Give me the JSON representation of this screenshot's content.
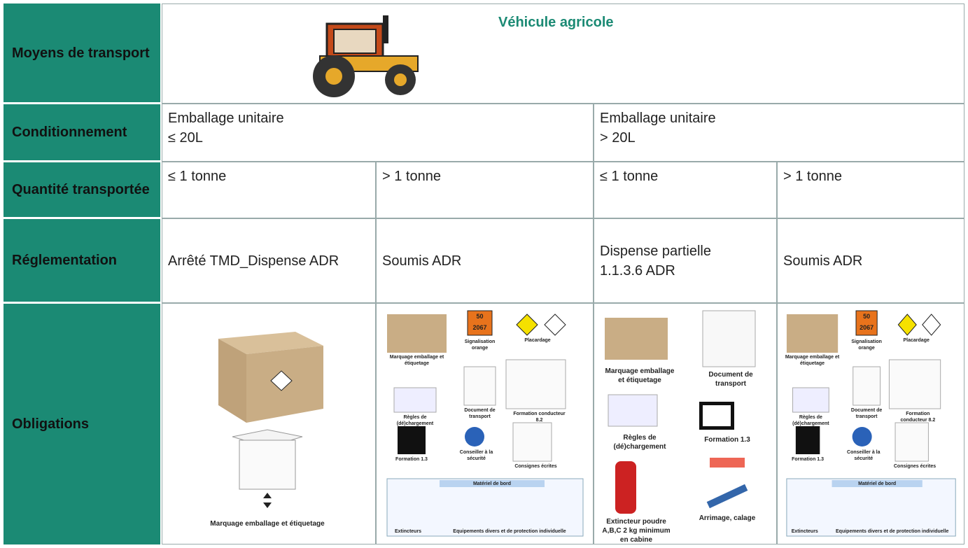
{
  "header_column": [
    "Moyens de transport",
    "Conditionnement",
    "Quantité transportée",
    "Réglementation",
    "Obligations"
  ],
  "transport": {
    "title": "Véhicule agricole"
  },
  "conditionnement": [
    [
      "Emballage unitaire",
      "≤ 20L"
    ],
    [
      "Emballage unitaire",
      "> 20L"
    ]
  ],
  "quantite": [
    "≤ 1 tonne",
    "> 1 tonne",
    "≤ 1 tonne",
    "> 1 tonne"
  ],
  "reglementation": [
    [
      "Arrêté TMD_Dispense ADR"
    ],
    [
      "Soumis ADR"
    ],
    [
      "Dispense partielle",
      "1.1.3.6 ADR"
    ],
    [
      "Soumis ADR"
    ]
  ],
  "obligations": [
    {
      "captions": [
        "Marquage emballage et étiquetage"
      ]
    },
    {
      "plate": [
        "50",
        "2067"
      ],
      "captions": [
        "Marquage emballage et étiquetage",
        "Signalisation orange",
        "Placardage",
        "Règles de (dé)chargement",
        "Document de transport",
        "Formation conducteur 8.2",
        "Formation 1.3",
        "Conseiller à la sécurité",
        "Consignes écrites",
        "Matériel de bord",
        "Extincteurs",
        "Equipements divers et de protection individuelle"
      ]
    },
    {
      "captions": [
        "Marquage emballage et étiquetage",
        "Document de transport",
        "Règles de (dé)chargement",
        "Formation 1.3",
        "Extincteur poudre A,B,C 2 kg minimum en cabine",
        "Arrimage, calage"
      ]
    },
    {
      "plate": [
        "50",
        "2067"
      ],
      "captions": [
        "Marquage emballage et étiquetage",
        "Signalisation orange",
        "Placardage",
        "Règles de (dé)chargement",
        "Document de transport",
        "Formation conducteur 8.2",
        "Formation 1.3",
        "Conseiller à la sécurité",
        "Consignes écrites",
        "Matériel de bord",
        "Extincteurs",
        "Equipements divers et de protection individuelle"
      ]
    }
  ]
}
